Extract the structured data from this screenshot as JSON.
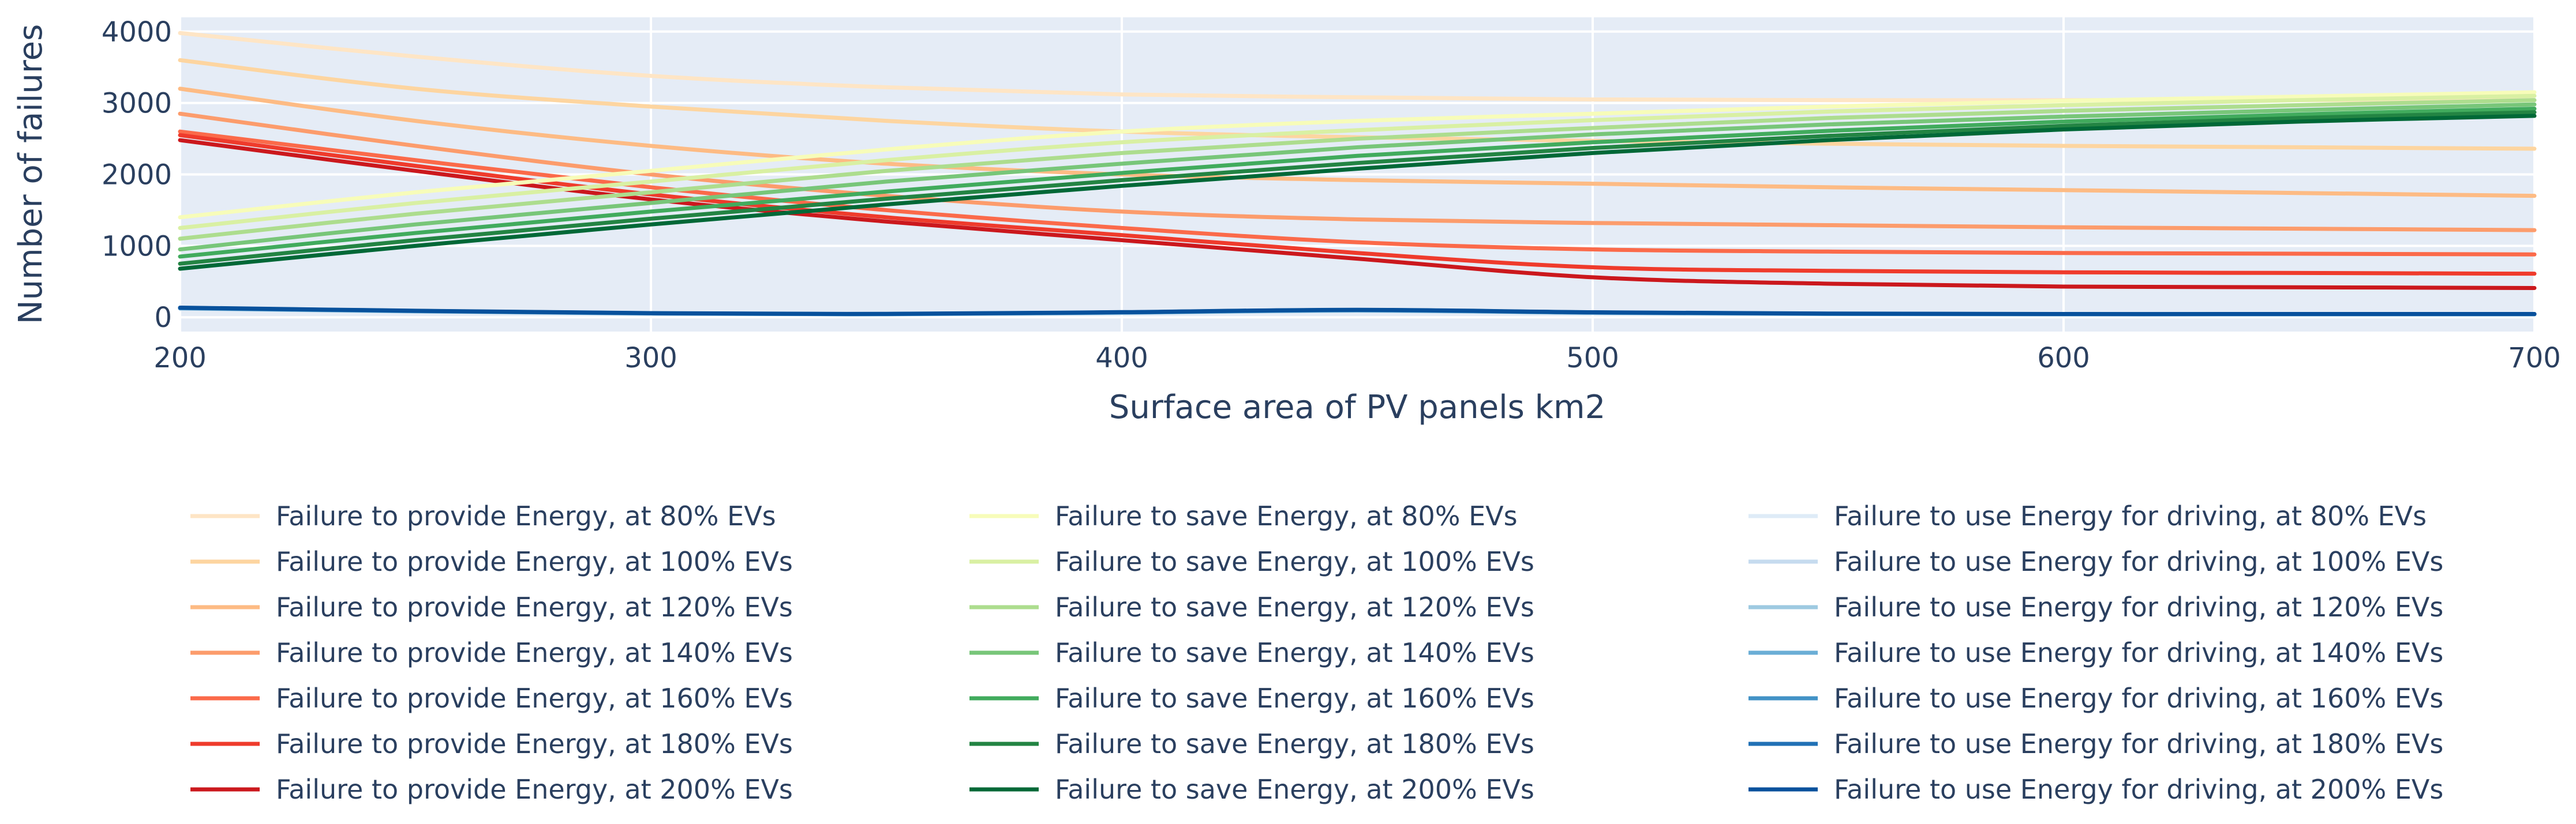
{
  "chart_data": {
    "type": "line",
    "title": "",
    "xlabel": "Surface area of PV panels km2",
    "ylabel": "Number of failures",
    "xlim": [
      200,
      700
    ],
    "ylim": [
      -200,
      4200
    ],
    "x_ticks": [
      200,
      300,
      400,
      500,
      600,
      700
    ],
    "y_ticks": [
      0,
      1000,
      2000,
      3000,
      4000
    ],
    "x_tick_labels": [
      "200",
      "300",
      "400",
      "500",
      "600",
      "700"
    ],
    "y_tick_labels": [
      "0",
      "1000",
      "2000",
      "3000",
      "4000"
    ],
    "grid": true,
    "legend_position": "bottom",
    "plot_background": "#e5ecf6",
    "x": [
      200,
      250,
      300,
      350,
      400,
      450,
      500,
      550,
      600,
      650,
      700
    ],
    "series": [
      {
        "name": "Failure to provide Energy, at 80% EVs",
        "color": "#fee5c5",
        "values": [
          3980,
          3650,
          3380,
          3220,
          3120,
          3080,
          3050,
          3040,
          3040,
          3040,
          3040
        ]
      },
      {
        "name": "Failure to provide Energy, at 100% EVs",
        "color": "#fdd5a0",
        "values": [
          3600,
          3200,
          2950,
          2750,
          2600,
          2520,
          2470,
          2430,
          2400,
          2380,
          2360
        ]
      },
      {
        "name": "Failure to provide Energy, at 120% EVs",
        "color": "#fdbb84",
        "values": [
          3200,
          2750,
          2400,
          2150,
          2000,
          1920,
          1870,
          1820,
          1780,
          1740,
          1700
        ]
      },
      {
        "name": "Failure to provide Energy, at 140% EVs",
        "color": "#fc9c6c",
        "values": [
          2850,
          2400,
          2000,
          1700,
          1480,
          1370,
          1320,
          1290,
          1260,
          1240,
          1220
        ]
      },
      {
        "name": "Failure to provide Energy, at 160% EVs",
        "color": "#fb6a4a",
        "values": [
          2600,
          2200,
          1820,
          1500,
          1250,
          1050,
          950,
          920,
          900,
          890,
          880
        ]
      },
      {
        "name": "Failure to provide Energy, at 180% EVs",
        "color": "#ef3b2c",
        "values": [
          2550,
          2120,
          1720,
          1400,
          1150,
          900,
          700,
          650,
          630,
          620,
          610
        ]
      },
      {
        "name": "Failure to provide Energy, at 200% EVs",
        "color": "#cb181d",
        "values": [
          2480,
          2050,
          1650,
          1340,
          1080,
          820,
          560,
          470,
          430,
          420,
          410
        ]
      },
      {
        "name": "Failure to save Energy, at 80% EVs",
        "color": "#f7fcb9",
        "values": [
          1400,
          1750,
          2050,
          2350,
          2600,
          2750,
          2850,
          2950,
          3030,
          3090,
          3150
        ]
      },
      {
        "name": "Failure to save Energy, at 100% EVs",
        "color": "#d9f0a3",
        "values": [
          1250,
          1600,
          1900,
          2200,
          2450,
          2620,
          2760,
          2880,
          2970,
          3040,
          3100
        ]
      },
      {
        "name": "Failure to save Energy, at 120% EVs",
        "color": "#addd8e",
        "values": [
          1100,
          1450,
          1750,
          2050,
          2300,
          2500,
          2650,
          2790,
          2890,
          2970,
          3040
        ]
      },
      {
        "name": "Failure to save Energy, at 140% EVs",
        "color": "#78c679",
        "values": [
          950,
          1300,
          1600,
          1900,
          2150,
          2380,
          2560,
          2700,
          2810,
          2900,
          2980
        ]
      },
      {
        "name": "Failure to save Energy, at 160% EVs",
        "color": "#41ab5d",
        "values": [
          850,
          1180,
          1480,
          1760,
          2020,
          2260,
          2450,
          2610,
          2740,
          2840,
          2920
        ]
      },
      {
        "name": "Failure to save Energy, at 180% EVs",
        "color": "#238443",
        "values": [
          750,
          1080,
          1380,
          1660,
          1920,
          2160,
          2370,
          2540,
          2680,
          2790,
          2870
        ]
      },
      {
        "name": "Failure to save Energy, at 200% EVs",
        "color": "#006837",
        "values": [
          680,
          1000,
          1300,
          1580,
          1840,
          2080,
          2300,
          2480,
          2630,
          2740,
          2820
        ]
      },
      {
        "name": "Failure to use Energy for driving, at 80% EVs",
        "color": "#deebf7",
        "values": [
          120,
          80,
          50,
          40,
          60,
          90,
          60,
          45,
          40,
          40,
          40
        ]
      },
      {
        "name": "Failure to use Energy for driving, at 100% EVs",
        "color": "#c6dbef",
        "values": [
          122,
          82,
          52,
          42,
          62,
          92,
          62,
          46,
          41,
          41,
          41
        ]
      },
      {
        "name": "Failure to use Energy for driving, at 120% EVs",
        "color": "#9ecae1",
        "values": [
          125,
          84,
          53,
          43,
          64,
          95,
          63,
          47,
          42,
          42,
          42
        ]
      },
      {
        "name": "Failure to use Energy for driving, at 140% EVs",
        "color": "#6baed6",
        "values": [
          128,
          86,
          54,
          44,
          66,
          98,
          65,
          48,
          43,
          43,
          43
        ]
      },
      {
        "name": "Failure to use Energy for driving, at 160% EVs",
        "color": "#4292c6",
        "values": [
          130,
          88,
          55,
          45,
          68,
          100,
          66,
          49,
          44,
          44,
          44
        ]
      },
      {
        "name": "Failure to use Energy for driving, at 180% EVs",
        "color": "#2171b5",
        "values": [
          132,
          90,
          56,
          46,
          70,
          103,
          68,
          50,
          45,
          45,
          45
        ]
      },
      {
        "name": "Failure to use Energy for driving, at 200% EVs",
        "color": "#08519c",
        "values": [
          135,
          92,
          58,
          48,
          72,
          105,
          70,
          52,
          46,
          46,
          46
        ]
      }
    ]
  }
}
